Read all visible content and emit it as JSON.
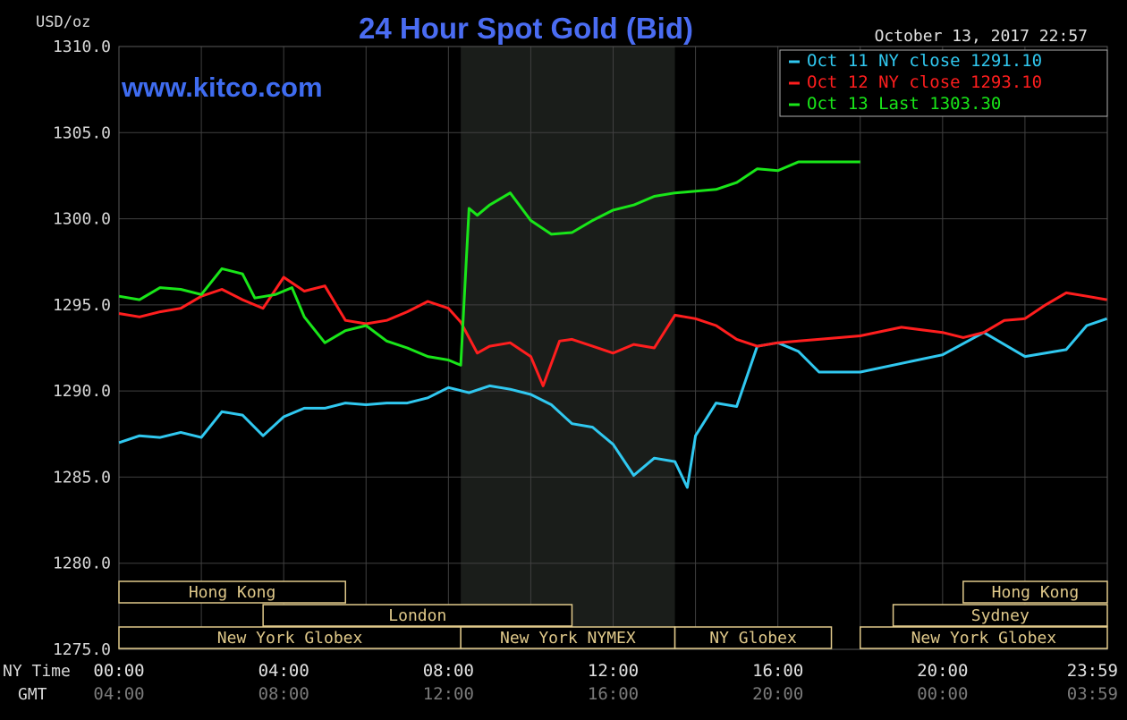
{
  "chart_data": {
    "type": "line",
    "title": "24 Hour Spot Gold (Bid)",
    "watermark": "www.kitco.com",
    "timestamp": "October 13, 2017 22:57",
    "y_unit": "USD/oz",
    "ylim": [
      1275,
      1310
    ],
    "xlim": [
      0,
      24
    ],
    "y_ticks": [
      "1275.0",
      "1280.0",
      "1285.0",
      "1290.0",
      "1295.0",
      "1300.0",
      "1305.0",
      "1310.0"
    ],
    "x_row_label_ny": "NY Time",
    "x_row_label_gmt": "GMT",
    "x_ticks_ny": [
      "00:00",
      "04:00",
      "08:00",
      "12:00",
      "16:00",
      "20:00",
      "23:59"
    ],
    "x_ticks_gmt": [
      "04:00",
      "08:00",
      "12:00",
      "16:00",
      "20:00",
      "00:00",
      "03:59"
    ],
    "grid": true,
    "legend_position": "top-right",
    "nymex_session": [
      8.3,
      13.5
    ],
    "colors": {
      "background": "#000000",
      "grid": "#404040",
      "shade": "#1a1d1a",
      "axis_text": "#d8d8d8",
      "title": "#4a6cf2",
      "session": "#e0c98a"
    },
    "series": [
      {
        "name": "Oct 11 NY close 1291.10",
        "color": "#30c8f0",
        "x": [
          0,
          0.5,
          1,
          1.5,
          2,
          2.5,
          3,
          3.5,
          4,
          4.5,
          5,
          5.5,
          6,
          6.5,
          7,
          7.5,
          8,
          8.5,
          9,
          9.5,
          10,
          10.5,
          11,
          11.5,
          12,
          12.5,
          13,
          13.5,
          13.8,
          14,
          14.5,
          15,
          15.5,
          16,
          16.5,
          17,
          18,
          19,
          20,
          21,
          22,
          23,
          23.5,
          23.99
        ],
        "y": [
          1287,
          1287.4,
          1287.3,
          1287.6,
          1287.3,
          1288.8,
          1288.6,
          1287.4,
          1288.5,
          1289,
          1289,
          1289.3,
          1289.2,
          1289.3,
          1289.3,
          1289.6,
          1290.2,
          1289.9,
          1290.3,
          1290.1,
          1289.8,
          1289.2,
          1288.1,
          1287.9,
          1286.9,
          1285.1,
          1286.1,
          1285.9,
          1284.4,
          1287.4,
          1289.3,
          1289.1,
          1292.6,
          1292.8,
          1292.3,
          1291.1,
          1291.1,
          1291.6,
          1292.1,
          1293.4,
          1292.0,
          1292.4,
          1293.8,
          1294.2
        ]
      },
      {
        "name": "Oct 12 NY close 1293.10",
        "color": "#ff1e1e",
        "x": [
          0,
          0.5,
          1,
          1.5,
          2,
          2.5,
          3,
          3.5,
          4,
          4.5,
          5,
          5.5,
          6,
          6.5,
          7,
          7.5,
          8,
          8.3,
          8.7,
          9,
          9.5,
          10,
          10.3,
          10.7,
          11,
          11.5,
          12,
          12.5,
          13,
          13.5,
          14,
          14.5,
          15,
          15.5,
          16,
          16.5,
          17,
          18,
          19,
          20,
          20.5,
          21,
          21.5,
          22,
          22.5,
          23,
          23.5,
          23.99
        ],
        "y": [
          1294.5,
          1294.3,
          1294.6,
          1294.8,
          1295.5,
          1295.9,
          1295.3,
          1294.8,
          1296.6,
          1295.8,
          1296.1,
          1294.1,
          1293.9,
          1294.1,
          1294.6,
          1295.2,
          1294.8,
          1294.0,
          1292.2,
          1292.6,
          1292.8,
          1292.0,
          1290.3,
          1292.9,
          1293.0,
          1292.6,
          1292.2,
          1292.7,
          1292.5,
          1294.4,
          1294.2,
          1293.8,
          1293.0,
          1292.6,
          1292.8,
          1292.9,
          1293.0,
          1293.2,
          1293.7,
          1293.4,
          1293.1,
          1293.4,
          1294.1,
          1294.2,
          1295.0,
          1295.7,
          1295.5,
          1295.3
        ]
      },
      {
        "name": "Oct 13 Last 1303.30",
        "color": "#19e619",
        "x": [
          0,
          0.5,
          1,
          1.5,
          2,
          2.5,
          3,
          3.3,
          3.8,
          4.2,
          4.5,
          5,
          5.5,
          6,
          6.5,
          7,
          7.5,
          8,
          8.3,
          8.5,
          8.7,
          9,
          9.5,
          10,
          10.5,
          11,
          11.5,
          12,
          12.5,
          13,
          13.5,
          14,
          14.5,
          15,
          15.5,
          16,
          16.5,
          17,
          17.5,
          18
        ],
        "y": [
          1295.5,
          1295.3,
          1296.0,
          1295.9,
          1295.6,
          1297.1,
          1296.8,
          1295.4,
          1295.6,
          1296.0,
          1294.3,
          1292.8,
          1293.5,
          1293.8,
          1292.9,
          1292.5,
          1292.0,
          1291.8,
          1291.5,
          1300.6,
          1300.2,
          1300.8,
          1301.5,
          1299.9,
          1299.1,
          1299.2,
          1299.9,
          1300.5,
          1300.8,
          1301.3,
          1301.5,
          1301.6,
          1301.7,
          1302.1,
          1302.9,
          1302.8,
          1303.3,
          1303.3,
          1303.3,
          1303.3
        ]
      }
    ],
    "sessions": [
      {
        "label": "Hong Kong",
        "start": 0,
        "end": 5.5,
        "row": 0
      },
      {
        "label": "Hong Kong",
        "start": 20.5,
        "end": 24,
        "row": 0
      },
      {
        "label": "London",
        "start": 3.5,
        "end": 11,
        "row": 1
      },
      {
        "label": "Sydney",
        "start": 18.8,
        "end": 24,
        "row": 1
      },
      {
        "label": "New York Globex",
        "start": 0,
        "end": 8.3,
        "row": 2
      },
      {
        "label": "New York NYMEX",
        "start": 8.3,
        "end": 13.5,
        "row": 2
      },
      {
        "label": "NY Globex",
        "start": 13.5,
        "end": 17.3,
        "row": 2
      },
      {
        "label": "New York Globex",
        "start": 18,
        "end": 24,
        "row": 2
      }
    ]
  }
}
